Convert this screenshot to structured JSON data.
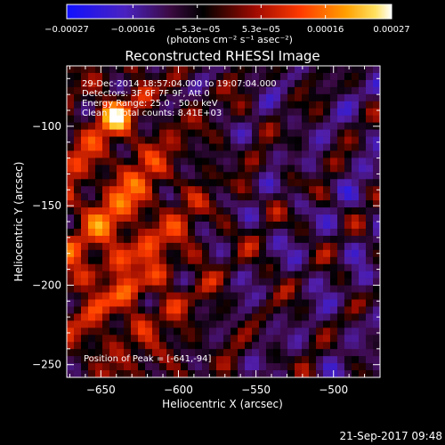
{
  "chart_data": {
    "type": "heatmap",
    "title": "Reconstructed RHESSI Image",
    "xlabel": "Heliocentric X (arcsec)",
    "ylabel": "Heliocentric Y (arcsec)",
    "xlim": [
      -672,
      -470
    ],
    "ylim": [
      -258,
      -62
    ],
    "x_ticks": [
      -650,
      -600,
      -550,
      -500
    ],
    "y_ticks": [
      -100,
      -150,
      -200,
      -250
    ],
    "x_tick_labels": [
      "−650",
      "−600",
      "−550",
      "−500"
    ],
    "y_tick_labels": [
      "−100",
      "−150",
      "−200",
      "−250"
    ],
    "grid": "off",
    "colorbar": {
      "colormap": "red temperature (blue-black-red-yellow-white)",
      "range": [
        -0.00027,
        0.00027
      ],
      "tick_labels": [
        "−0.00027",
        "−0.00016",
        "−5.3e−05",
        "5.3e−05",
        "0.00016",
        "0.00027"
      ],
      "units_label": "(photons cm⁻² s⁻¹ asec⁻²)"
    },
    "annotations": [
      "29-Dec-2014 18:57:04.000 to 19:07:04.000",
      "Detectors: 3F 6F 7F 9F, Att 0",
      "Energy Range: 25.0 - 50.0 keV",
      "Clean    Total counts: 8.41E+03"
    ],
    "peak_label": "Position of Peak = [-641,-94]",
    "peak_position": [
      -641,
      -94
    ],
    "colors": {
      "background": "#000000",
      "text": "#ffffff",
      "cmap_stops": [
        "#1a1aff",
        "#5a2ab0",
        "#000000",
        "#b81400",
        "#ff5a00",
        "#ffc800",
        "#ffffff"
      ]
    }
  },
  "footer": {
    "timestamp": "21-Sep-2017 09:48"
  }
}
